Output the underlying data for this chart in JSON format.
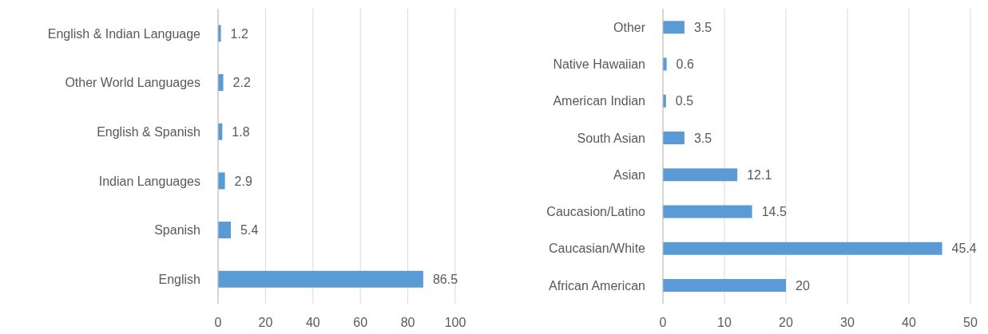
{
  "chart_data": [
    {
      "type": "bar",
      "orientation": "horizontal",
      "categories": [
        "English & Indian Language",
        "Other World Languages",
        "English & Spanish",
        "Indian Languages",
        "Spanish",
        "English"
      ],
      "values": [
        1.2,
        2.2,
        1.8,
        2.9,
        5.4,
        86.5
      ],
      "color": "#5b9bd5",
      "xlim": [
        0,
        100
      ],
      "xticks": [
        0,
        20,
        40,
        60,
        80,
        100
      ],
      "grid": "x",
      "data_labels": true
    },
    {
      "type": "bar",
      "orientation": "horizontal",
      "categories": [
        "Other",
        "Native Hawaiian",
        "American Indian",
        "South Asian",
        "Asian",
        "Caucasion/Latino",
        "Caucasian/White",
        "African American"
      ],
      "values": [
        3.5,
        0.6,
        0.5,
        3.5,
        12.1,
        14.5,
        45.4,
        20
      ],
      "color": "#5b9bd5",
      "xlim": [
        0,
        50
      ],
      "xticks": [
        0,
        10,
        20,
        30,
        40,
        50
      ],
      "grid": "x",
      "data_labels": true
    }
  ]
}
